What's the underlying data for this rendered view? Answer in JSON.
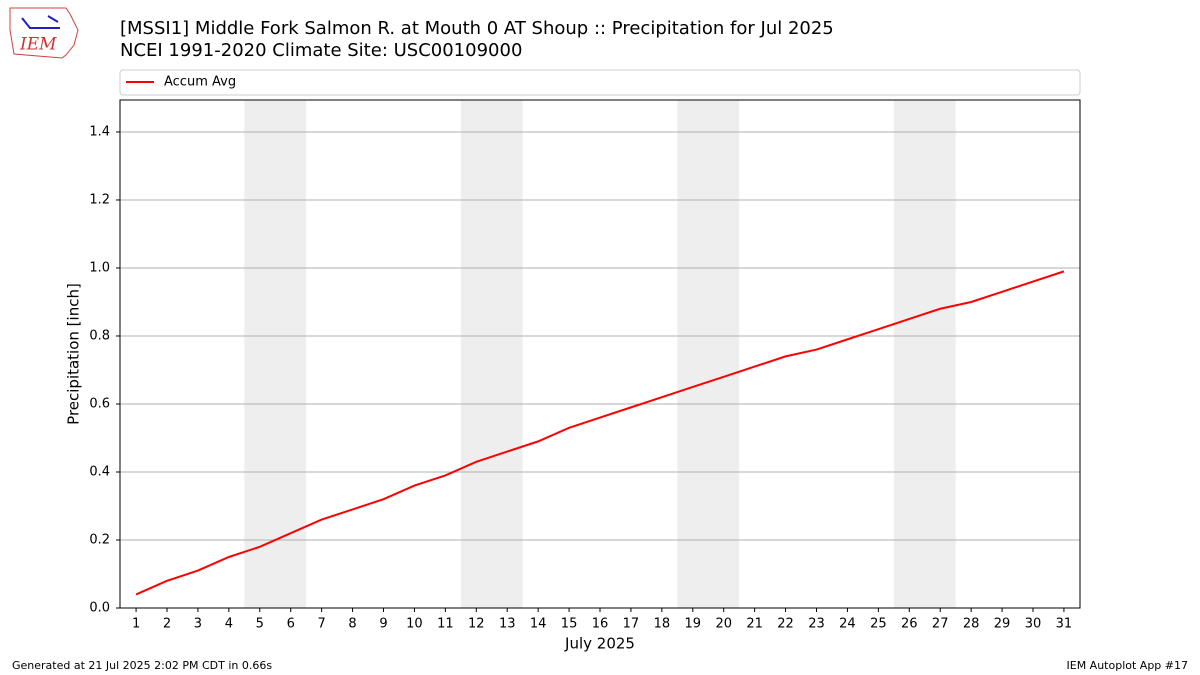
{
  "chart_data": {
    "type": "line",
    "logo_text": "IEM",
    "title": "[MSSI1] Middle Fork Salmon R. at Mouth 0 AT Shoup :: Precipitation for Jul 2025",
    "subtitle": "NCEI 1991-2020 Climate Site: USC00109000",
    "x_label": "July 2025",
    "y_label": "Precipitation [inch]",
    "x": [
      1,
      2,
      3,
      4,
      5,
      6,
      7,
      8,
      9,
      10,
      11,
      12,
      13,
      14,
      15,
      16,
      17,
      18,
      19,
      20,
      21,
      22,
      23,
      24,
      25,
      26,
      27,
      28,
      29,
      30,
      31
    ],
    "series": [
      {
        "name": "Accum Avg",
        "color": "#ff0000",
        "values": [
          0.04,
          0.08,
          0.11,
          0.15,
          0.18,
          0.22,
          0.26,
          0.29,
          0.32,
          0.36,
          0.39,
          0.43,
          0.46,
          0.49,
          0.53,
          0.56,
          0.59,
          0.62,
          0.65,
          0.68,
          0.71,
          0.74,
          0.76,
          0.79,
          0.82,
          0.85,
          0.88,
          0.9,
          0.93,
          0.96,
          0.99
        ]
      }
    ],
    "shaded_x_ranges": [
      [
        4.5,
        6.5
      ],
      [
        11.5,
        13.5
      ],
      [
        18.5,
        20.5
      ],
      [
        25.5,
        27.5
      ]
    ],
    "shade_color": "#eeeeee",
    "xlim": [
      0.48,
      31.52
    ],
    "xticks": [
      1,
      2,
      3,
      4,
      5,
      6,
      7,
      8,
      9,
      10,
      11,
      12,
      13,
      14,
      15,
      16,
      17,
      18,
      19,
      20,
      21,
      22,
      23,
      24,
      25,
      26,
      27,
      28,
      29,
      30,
      31
    ],
    "ylim": [
      0,
      1.494
    ],
    "yticks": [
      {
        "value": 0,
        "label": "0.0"
      },
      0.2,
      0.4,
      0.6,
      0.8,
      {
        "value": 1,
        "label": "1.0"
      },
      1.2,
      1.4
    ],
    "grid": "y",
    "legend_position": "top",
    "footer_left": "Generated at 21 Jul 2025 2:02 PM CDT in 0.66s",
    "footer_right": "IEM Autoplot App #17"
  }
}
